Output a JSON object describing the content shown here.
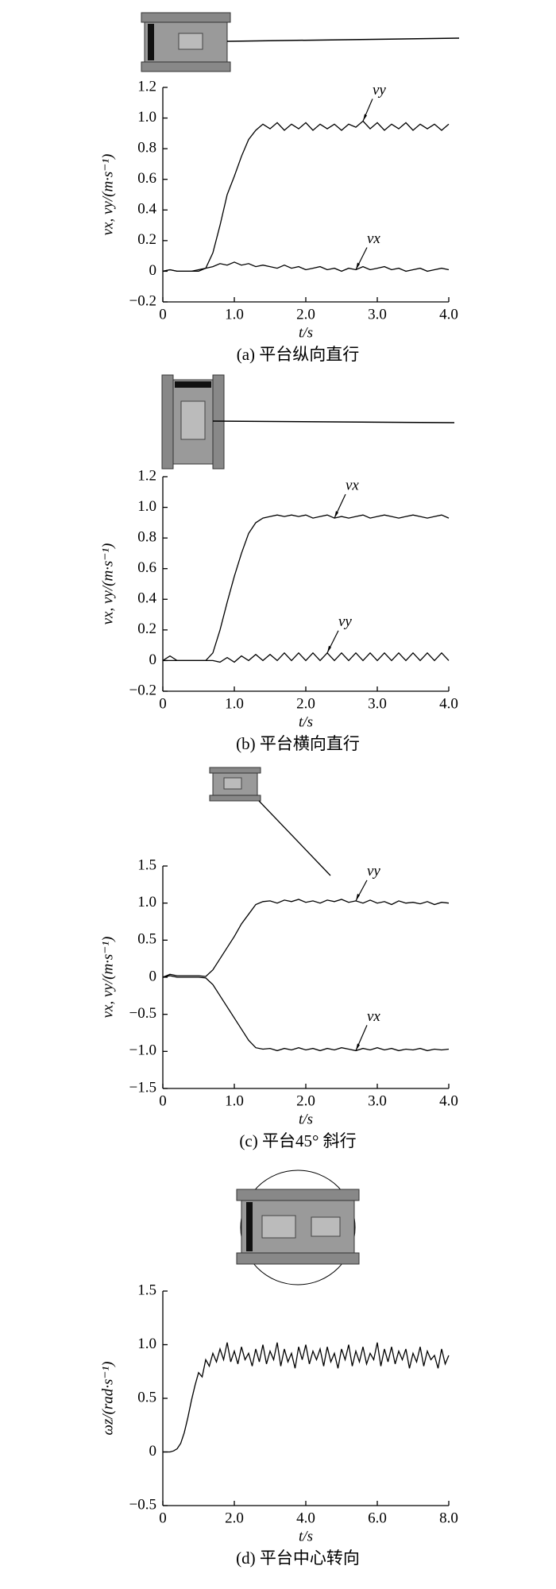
{
  "chart_data": [
    {
      "type": "line",
      "xlabel": "t/s",
      "ylabel": "vx, vy/(m·s⁻¹)",
      "caption": "(a) 平台纵向直行",
      "xlim": [
        0,
        4
      ],
      "ylim": [
        -0.2,
        1.2
      ],
      "xticks": [
        0,
        {
          "value": 1,
          "label": "1.0"
        },
        {
          "value": 2,
          "label": "2.0"
        },
        {
          "value": 3,
          "label": "3.0"
        },
        {
          "value": 4,
          "label": "4.0"
        }
      ],
      "yticks": [
        {
          "value": -0.2,
          "label": "−0.2"
        },
        0,
        0.2,
        0.4,
        0.6,
        0.8,
        {
          "value": 1,
          "label": "1.0"
        },
        1.2
      ],
      "x": [
        0,
        0.1,
        0.2,
        0.3,
        0.4,
        0.5,
        0.6,
        0.7,
        0.8,
        0.9,
        1.0,
        1.1,
        1.2,
        1.3,
        1.4,
        1.5,
        1.6,
        1.7,
        1.8,
        1.9,
        2.0,
        2.1,
        2.2,
        2.3,
        2.4,
        2.5,
        2.6,
        2.7,
        2.8,
        2.9,
        3.0,
        3.1,
        3.2,
        3.3,
        3.4,
        3.5,
        3.6,
        3.7,
        3.8,
        3.9,
        4.0
      ],
      "series": [
        {
          "name": "vy",
          "color": "#000000",
          "values": [
            0,
            0.01,
            0,
            0,
            0,
            0,
            0.02,
            0.12,
            0.3,
            0.5,
            0.62,
            0.75,
            0.86,
            0.92,
            0.96,
            0.93,
            0.97,
            0.92,
            0.96,
            0.93,
            0.97,
            0.92,
            0.96,
            0.93,
            0.96,
            0.92,
            0.96,
            0.94,
            0.98,
            0.93,
            0.97,
            0.92,
            0.96,
            0.93,
            0.97,
            0.92,
            0.96,
            0.93,
            0.96,
            0.92,
            0.96
          ]
        },
        {
          "name": "vx",
          "color": "#000000",
          "values": [
            0,
            0.01,
            0,
            0,
            0,
            0.01,
            0.02,
            0.03,
            0.05,
            0.04,
            0.06,
            0.04,
            0.05,
            0.03,
            0.04,
            0.03,
            0.02,
            0.04,
            0.02,
            0.03,
            0.01,
            0.02,
            0.03,
            0.01,
            0.02,
            0,
            0.02,
            0.01,
            0.03,
            0.01,
            0.02,
            0.03,
            0.01,
            0.02,
            0,
            0.01,
            0.02,
            0,
            0.01,
            0.02,
            0.01
          ]
        }
      ]
    },
    {
      "type": "line",
      "xlabel": "t/s",
      "ylabel": "vx, vy/(m·s⁻¹)",
      "caption": "(b) 平台横向直行",
      "xlim": [
        0,
        4
      ],
      "ylim": [
        -0.2,
        1.2
      ],
      "xticks": [
        0,
        {
          "value": 1,
          "label": "1.0"
        },
        {
          "value": 2,
          "label": "2.0"
        },
        {
          "value": 3,
          "label": "3.0"
        },
        {
          "value": 4,
          "label": "4.0"
        }
      ],
      "yticks": [
        {
          "value": -0.2,
          "label": "−0.2"
        },
        0,
        0.2,
        0.4,
        0.6,
        0.8,
        {
          "value": 1,
          "label": "1.0"
        },
        1.2
      ],
      "x": [
        0,
        0.1,
        0.2,
        0.3,
        0.4,
        0.5,
        0.6,
        0.7,
        0.8,
        0.9,
        1.0,
        1.1,
        1.2,
        1.3,
        1.4,
        1.5,
        1.6,
        1.7,
        1.8,
        1.9,
        2.0,
        2.1,
        2.2,
        2.3,
        2.4,
        2.5,
        2.6,
        2.7,
        2.8,
        2.9,
        3.0,
        3.1,
        3.2,
        3.3,
        3.4,
        3.5,
        3.6,
        3.7,
        3.8,
        3.9,
        4.0
      ],
      "series": [
        {
          "name": "vx",
          "color": "#000000",
          "values": [
            0,
            0,
            0,
            0,
            0,
            0,
            0,
            0.05,
            0.2,
            0.38,
            0.55,
            0.7,
            0.83,
            0.9,
            0.93,
            0.94,
            0.95,
            0.94,
            0.95,
            0.94,
            0.95,
            0.93,
            0.94,
            0.95,
            0.93,
            0.94,
            0.93,
            0.94,
            0.95,
            0.93,
            0.94,
            0.95,
            0.94,
            0.93,
            0.94,
            0.95,
            0.94,
            0.93,
            0.94,
            0.95,
            0.93
          ]
        },
        {
          "name": "vy",
          "color": "#000000",
          "values": [
            0,
            0.03,
            0,
            0,
            0,
            0,
            0,
            0,
            -0.01,
            0.02,
            -0.01,
            0.03,
            0,
            0.04,
            0,
            0.04,
            0,
            0.05,
            0,
            0.05,
            0,
            0.05,
            0,
            0.05,
            0,
            0.05,
            0,
            0.05,
            0,
            0.05,
            0,
            0.05,
            0,
            0.05,
            0,
            0.05,
            0,
            0.05,
            0,
            0.05,
            0
          ]
        }
      ]
    },
    {
      "type": "line",
      "xlabel": "t/s",
      "ylabel": "vx, vy/(m·s⁻¹)",
      "caption": "(c) 平台45° 斜行",
      "xlim": [
        0,
        4
      ],
      "ylim": [
        -1.5,
        1.5
      ],
      "xticks": [
        0,
        {
          "value": 1,
          "label": "1.0"
        },
        {
          "value": 2,
          "label": "2.0"
        },
        {
          "value": 3,
          "label": "3.0"
        },
        {
          "value": 4,
          "label": "4.0"
        }
      ],
      "yticks": [
        {
          "value": -1.5,
          "label": "−1.5"
        },
        {
          "value": -1,
          "label": "−1.0"
        },
        {
          "value": -0.5,
          "label": "−0.5"
        },
        0,
        0.5,
        {
          "value": 1,
          "label": "1.0"
        },
        1.5
      ],
      "x": [
        0,
        0.1,
        0.2,
        0.3,
        0.4,
        0.5,
        0.6,
        0.7,
        0.8,
        0.9,
        1.0,
        1.1,
        1.2,
        1.3,
        1.4,
        1.5,
        1.6,
        1.7,
        1.8,
        1.9,
        2.0,
        2.1,
        2.2,
        2.3,
        2.4,
        2.5,
        2.6,
        2.7,
        2.8,
        2.9,
        3.0,
        3.1,
        3.2,
        3.3,
        3.4,
        3.5,
        3.6,
        3.7,
        3.8,
        3.9,
        4.0
      ],
      "series": [
        {
          "name": "vy",
          "color": "#000000",
          "values": [
            0,
            0.04,
            0.02,
            0.02,
            0.02,
            0.02,
            0.01,
            0.1,
            0.25,
            0.4,
            0.55,
            0.72,
            0.85,
            0.98,
            1.02,
            1.03,
            1.0,
            1.04,
            1.02,
            1.05,
            1.01,
            1.03,
            1.0,
            1.04,
            1.02,
            1.05,
            1.01,
            1.03,
            1.0,
            1.04,
            1.0,
            1.02,
            0.98,
            1.03,
            1.0,
            1.01,
            0.99,
            1.02,
            0.98,
            1.01,
            1.0
          ]
        },
        {
          "name": "vx",
          "color": "#000000",
          "values": [
            0,
            0.02,
            0,
            0,
            0,
            0,
            -0.01,
            -0.1,
            -0.25,
            -0.4,
            -0.55,
            -0.7,
            -0.85,
            -0.95,
            -0.97,
            -0.96,
            -0.99,
            -0.96,
            -0.98,
            -0.95,
            -0.98,
            -0.96,
            -0.99,
            -0.96,
            -0.98,
            -0.95,
            -0.97,
            -0.99,
            -0.96,
            -0.98,
            -0.95,
            -0.98,
            -0.96,
            -0.99,
            -0.97,
            -0.98,
            -0.96,
            -0.99,
            -0.97,
            -0.98,
            -0.97
          ]
        }
      ]
    },
    {
      "type": "line",
      "xlabel": "t/s",
      "ylabel": "ωz/(rad·s⁻¹)",
      "caption": "(d) 平台中心转向",
      "xlim": [
        0,
        8
      ],
      "ylim": [
        -0.5,
        1.5
      ],
      "xticks": [
        0,
        {
          "value": 2,
          "label": "2.0"
        },
        {
          "value": 4,
          "label": "4.0"
        },
        {
          "value": 6,
          "label": "6.0"
        },
        {
          "value": 8,
          "label": "8.0"
        }
      ],
      "yticks": [
        {
          "value": -0.5,
          "label": "−0.5"
        },
        0,
        0.5,
        {
          "value": 1,
          "label": "1.0"
        },
        1.5
      ],
      "x": [
        0,
        0.1,
        0.2,
        0.3,
        0.4,
        0.5,
        0.6,
        0.7,
        0.8,
        0.9,
        1.0,
        1.1,
        1.2,
        1.3,
        1.4,
        1.5,
        1.6,
        1.7,
        1.8,
        1.9,
        2.0,
        2.1,
        2.2,
        2.3,
        2.4,
        2.5,
        2.6,
        2.7,
        2.8,
        2.9,
        3.0,
        3.1,
        3.2,
        3.3,
        3.4,
        3.5,
        3.6,
        3.7,
        3.8,
        3.9,
        4.0,
        4.1,
        4.2,
        4.3,
        4.4,
        4.5,
        4.6,
        4.7,
        4.8,
        4.9,
        5.0,
        5.1,
        5.2,
        5.3,
        5.4,
        5.5,
        5.6,
        5.7,
        5.8,
        5.9,
        6.0,
        6.1,
        6.2,
        6.3,
        6.4,
        6.5,
        6.6,
        6.7,
        6.8,
        6.9,
        7.0,
        7.1,
        7.2,
        7.3,
        7.4,
        7.5,
        7.6,
        7.7,
        7.8,
        7.9,
        8.0
      ],
      "color": "#000000",
      "values": [
        0,
        0,
        0,
        0.01,
        0.03,
        0.08,
        0.18,
        0.32,
        0.48,
        0.62,
        0.74,
        0.7,
        0.86,
        0.8,
        0.92,
        0.84,
        0.96,
        0.86,
        1.02,
        0.84,
        0.94,
        0.82,
        0.98,
        0.86,
        0.92,
        0.8,
        0.96,
        0.84,
        1.0,
        0.82,
        0.94,
        0.86,
        1.02,
        0.8,
        0.96,
        0.84,
        0.92,
        0.78,
        0.98,
        0.86,
        1.0,
        0.82,
        0.94,
        0.86,
        0.96,
        0.8,
        0.98,
        0.84,
        0.92,
        0.78,
        0.96,
        0.86,
        1.0,
        0.8,
        0.94,
        0.84,
        0.98,
        0.82,
        0.92,
        0.86,
        1.02,
        0.8,
        0.96,
        0.84,
        0.98,
        0.82,
        0.94,
        0.86,
        0.96,
        0.78,
        0.92,
        0.84,
        0.98,
        0.8,
        0.94,
        0.86,
        0.9,
        0.78,
        0.96,
        0.82,
        0.9
      ]
    }
  ]
}
